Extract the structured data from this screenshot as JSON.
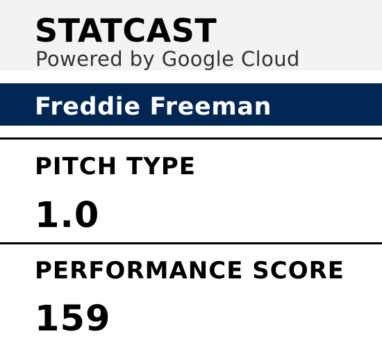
{
  "header": {
    "title": "STATCAST",
    "subtitle": "Powered by Google Cloud",
    "background_color": "#f3f3f3"
  },
  "player": {
    "name": "Freddie Freeman",
    "bar_color": "#002654"
  },
  "stats": [
    {
      "label": "PITCH TYPE",
      "value": "1.0"
    },
    {
      "label": "PERFORMANCE SCORE",
      "value": "159"
    }
  ]
}
